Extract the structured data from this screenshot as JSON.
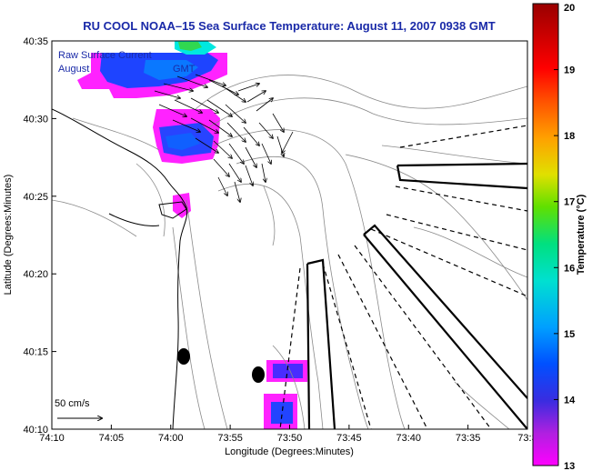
{
  "title": "RU COOL  NOAA–15  Sea Surface Temperature:  August 11, 2007 0938 GMT",
  "legend": {
    "line1": "Raw Surface Current",
    "line2_start": "August",
    "line2_end": "GMT"
  },
  "scale_label": "50 cm/s",
  "x_axis": {
    "label": "Longitude (Degrees:Minutes)",
    "ticks": [
      "74:10",
      "74:05",
      "74:00",
      "73:55",
      "73:50",
      "73:45",
      "73:40",
      "73:35",
      "73:3"
    ]
  },
  "y_axis": {
    "label": "Latitude (Degrees:Minutes)",
    "ticks": [
      "40:35",
      "40:30",
      "40:25",
      "40:20",
      "40:15",
      "40:10"
    ]
  },
  "colorbar": {
    "label": "Temperature (°C)",
    "ticks": [
      "20",
      "19",
      "18",
      "17",
      "16",
      "15",
      "14",
      "13"
    ],
    "min": 13,
    "max": 20
  },
  "colors": {
    "title": "#1a2aa8",
    "contour": "#8a8a8a",
    "coast": "#000000"
  }
}
